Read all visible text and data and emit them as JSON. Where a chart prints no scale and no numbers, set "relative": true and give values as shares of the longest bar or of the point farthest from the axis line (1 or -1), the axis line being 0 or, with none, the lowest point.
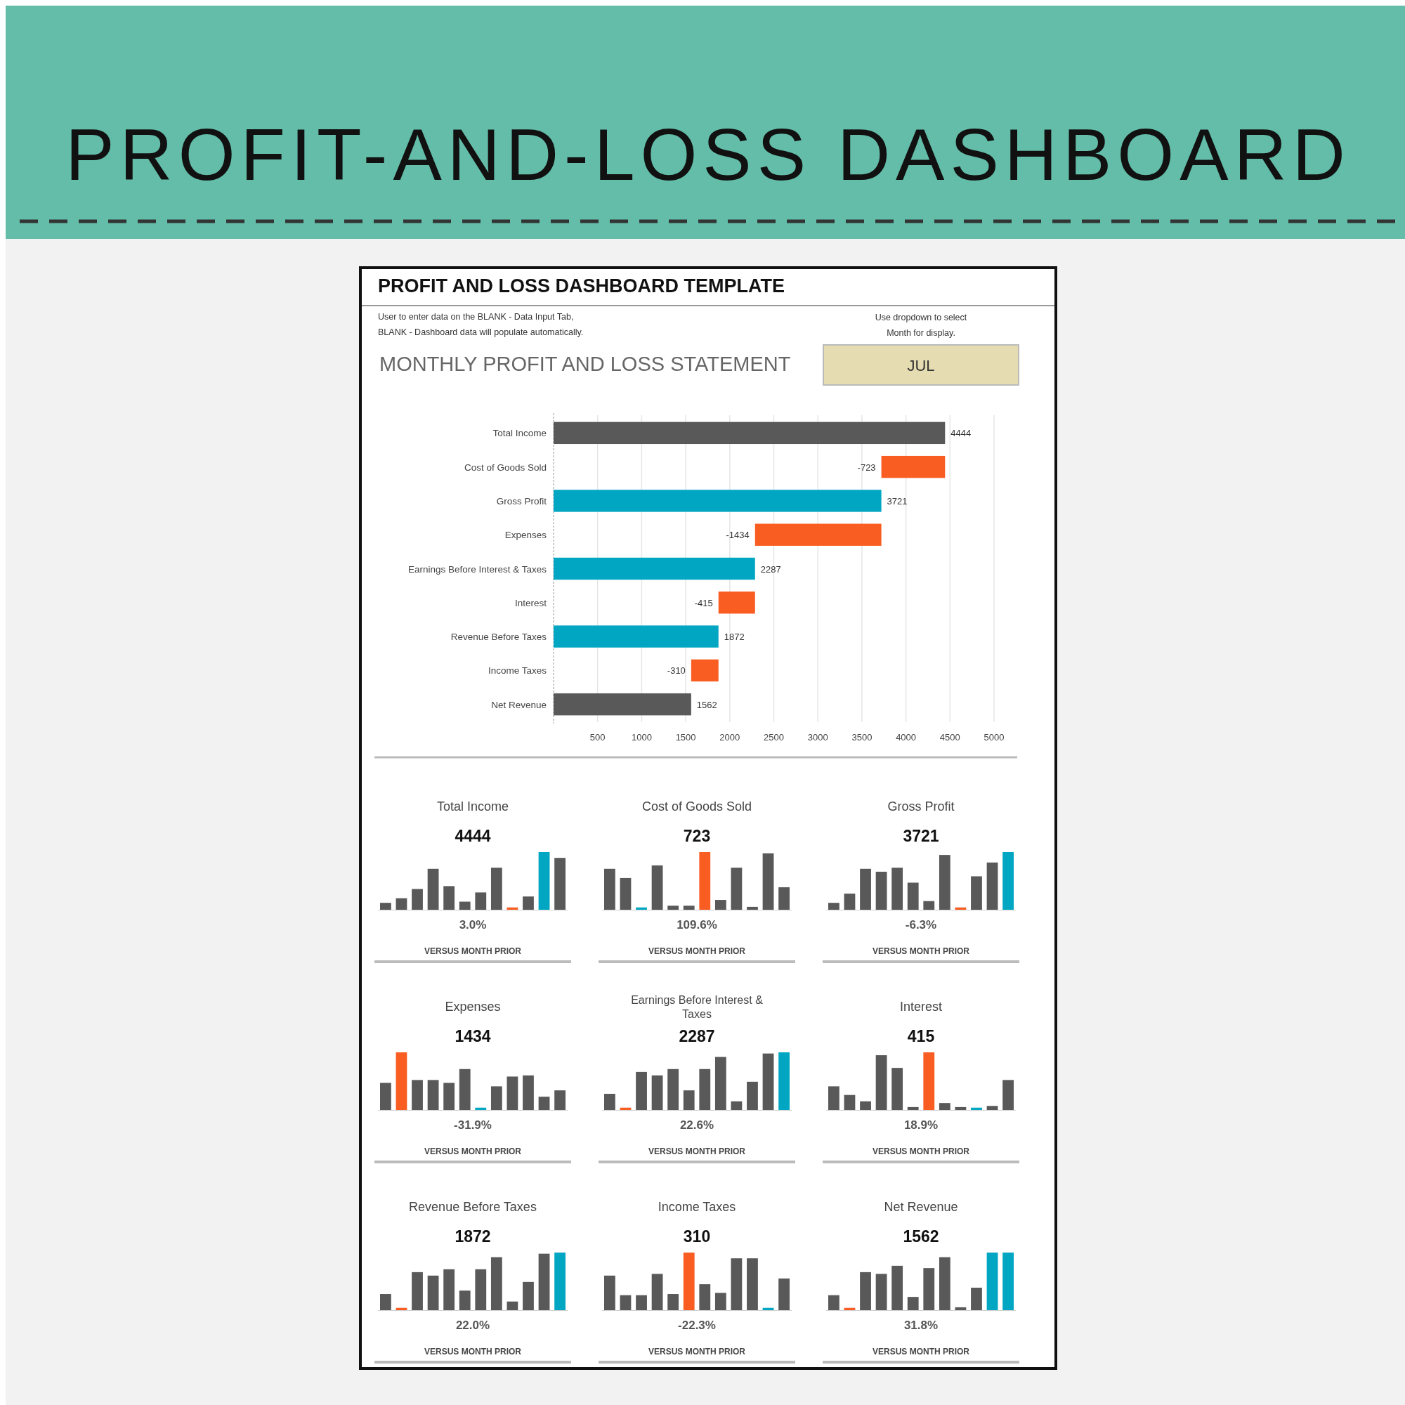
{
  "chart_data": [
    {
      "type": "bar",
      "orientation": "horizontal",
      "title": "PROFIT-AND-LOSS DASHBOARD",
      "subtitle": "PROFIT AND LOSS DASHBOARD TEMPLATE",
      "annotations": [
        "User to enter data on the BLANK - Data Input Tab,",
        "BLANK - Dashboard data will populate automatically.",
        "MONTHLY PROFIT AND LOSS STATEMENT",
        "Use dropdown to select",
        "Month for display.",
        "JUL"
      ],
      "categories": [
        "Total Income",
        "Cost of Goods Sold",
        "Gross Profit",
        "Expenses",
        "Earnings Before Interest & Taxes",
        "Interest",
        "Revenue Before Taxes",
        "Income Taxes",
        "Net Revenue"
      ],
      "values": [
        4444,
        -723,
        3721,
        -1434,
        2287,
        -415,
        1872,
        -310,
        1562
      ],
      "base": [
        0,
        4444,
        0,
        3721,
        0,
        2287,
        0,
        1872,
        0
      ],
      "colors": [
        "#595959",
        "#f95d22",
        "#00a6c2",
        "#f95d22",
        "#00a6c2",
        "#f95d22",
        "#00a6c2",
        "#f95d22",
        "#595959"
      ],
      "xlim": [
        0,
        5000
      ],
      "xticks": [
        500,
        1000,
        1500,
        2000,
        2500,
        3000,
        3500,
        4000,
        4500,
        5000
      ],
      "grid": "x",
      "data_labels": true
    },
    {
      "type": "bar",
      "relative": true,
      "title": "Total Income",
      "annotations": [
        "4444",
        "3.0%",
        "VERSUS MONTH PRIOR"
      ],
      "categories": [
        null,
        null,
        null,
        null,
        null,
        null,
        null,
        null,
        null,
        null,
        null,
        null
      ],
      "values": [
        0.12,
        0.2,
        0.36,
        0.71,
        0.41,
        0.14,
        0.3,
        0.73,
        0.04,
        0.23,
        1,
        0.9
      ],
      "colors": [
        "#595959",
        "#595959",
        "#595959",
        "#595959",
        "#595959",
        "#595959",
        "#595959",
        "#595959",
        "#f95d22",
        "#595959",
        "#00a6c2",
        "#595959"
      ]
    },
    {
      "type": "bar",
      "relative": true,
      "title": "Cost of Goods Sold",
      "annotations": [
        "723",
        "109.6%",
        "VERSUS MONTH PRIOR"
      ],
      "categories": [
        null,
        null,
        null,
        null,
        null,
        null,
        null,
        null,
        null,
        null,
        null,
        null
      ],
      "values": [
        0.71,
        0.55,
        0.04,
        0.77,
        0.07,
        0.07,
        1,
        0.17,
        0.73,
        0.05,
        0.98,
        0.39
      ],
      "colors": [
        "#595959",
        "#595959",
        "#00a6c2",
        "#595959",
        "#595959",
        "#595959",
        "#f95d22",
        "#595959",
        "#595959",
        "#595959",
        "#595959",
        "#595959"
      ]
    },
    {
      "type": "bar",
      "relative": true,
      "title": "Gross Profit",
      "annotations": [
        "3721",
        "-6.3%",
        "VERSUS MONTH PRIOR"
      ],
      "categories": [
        null,
        null,
        null,
        null,
        null,
        null,
        null,
        null,
        null,
        null,
        null,
        null
      ],
      "values": [
        0.12,
        0.28,
        0.71,
        0.66,
        0.73,
        0.47,
        0.15,
        0.95,
        0.04,
        0.58,
        0.82,
        1
      ],
      "colors": [
        "#595959",
        "#595959",
        "#595959",
        "#595959",
        "#595959",
        "#595959",
        "#595959",
        "#595959",
        "#f95d22",
        "#595959",
        "#595959",
        "#00a6c2"
      ]
    },
    {
      "type": "bar",
      "relative": true,
      "title": "Expenses",
      "annotations": [
        "1434",
        "-31.9%",
        "VERSUS MONTH PRIOR"
      ],
      "categories": [
        null,
        null,
        null,
        null,
        null,
        null,
        null,
        null,
        null,
        null,
        null,
        null
      ],
      "values": [
        0.47,
        1,
        0.52,
        0.52,
        0.47,
        0.71,
        0.04,
        0.41,
        0.58,
        0.6,
        0.23,
        0.34
      ],
      "colors": [
        "#595959",
        "#f95d22",
        "#595959",
        "#595959",
        "#595959",
        "#595959",
        "#00a6c2",
        "#595959",
        "#595959",
        "#595959",
        "#595959",
        "#595959"
      ]
    },
    {
      "type": "bar",
      "relative": true,
      "title": "Earnings Before Interest & Taxes",
      "annotations": [
        "2287",
        "22.6%",
        "VERSUS MONTH PRIOR"
      ],
      "categories": [
        null,
        null,
        null,
        null,
        null,
        null,
        null,
        null,
        null,
        null,
        null,
        null
      ],
      "values": [
        0.28,
        0.04,
        0.66,
        0.6,
        0.71,
        0.34,
        0.71,
        0.92,
        0.15,
        0.49,
        0.98,
        1
      ],
      "colors": [
        "#595959",
        "#f95d22",
        "#595959",
        "#595959",
        "#595959",
        "#595959",
        "#595959",
        "#595959",
        "#595959",
        "#595959",
        "#595959",
        "#00a6c2"
      ]
    },
    {
      "type": "bar",
      "relative": true,
      "title": "Interest",
      "annotations": [
        "415",
        "18.9%",
        "VERSUS MONTH PRIOR"
      ],
      "categories": [
        null,
        null,
        null,
        null,
        null,
        null,
        null,
        null,
        null,
        null,
        null,
        null
      ],
      "values": [
        0.41,
        0.26,
        0.15,
        0.95,
        0.73,
        0.05,
        1,
        0.12,
        0.05,
        0.04,
        0.07,
        0.52
      ],
      "colors": [
        "#595959",
        "#595959",
        "#595959",
        "#595959",
        "#595959",
        "#595959",
        "#f95d22",
        "#595959",
        "#595959",
        "#00a6c2",
        "#595959",
        "#595959"
      ]
    },
    {
      "type": "bar",
      "relative": true,
      "title": "Revenue Before Taxes",
      "annotations": [
        "1872",
        "22.0%",
        "VERSUS MONTH PRIOR"
      ],
      "categories": [
        null,
        null,
        null,
        null,
        null,
        null,
        null,
        null,
        null,
        null,
        null,
        null
      ],
      "values": [
        0.28,
        0.04,
        0.66,
        0.6,
        0.71,
        0.34,
        0.71,
        0.92,
        0.15,
        0.49,
        0.98,
        1
      ],
      "colors": [
        "#595959",
        "#f95d22",
        "#595959",
        "#595959",
        "#595959",
        "#595959",
        "#595959",
        "#595959",
        "#595959",
        "#595959",
        "#595959",
        "#00a6c2"
      ]
    },
    {
      "type": "bar",
      "relative": true,
      "title": "Income Taxes",
      "annotations": [
        "310",
        "-22.3%",
        "VERSUS MONTH PRIOR"
      ],
      "categories": [
        null,
        null,
        null,
        null,
        null,
        null,
        null,
        null,
        null,
        null,
        null,
        null
      ],
      "values": [
        0.6,
        0.26,
        0.26,
        0.63,
        0.28,
        1,
        0.45,
        0.3,
        0.9,
        0.9,
        0.04,
        0.55
      ],
      "colors": [
        "#595959",
        "#595959",
        "#595959",
        "#595959",
        "#595959",
        "#f95d22",
        "#595959",
        "#595959",
        "#595959",
        "#595959",
        "#00a6c2",
        "#595959"
      ]
    },
    {
      "type": "bar",
      "relative": true,
      "title": "Net Revenue",
      "annotations": [
        "1562",
        "31.8%",
        "VERSUS MONTH PRIOR"
      ],
      "categories": [
        null,
        null,
        null,
        null,
        null,
        null,
        null,
        null,
        null,
        null,
        null,
        null
      ],
      "values": [
        0.26,
        0.04,
        0.66,
        0.63,
        0.77,
        0.23,
        0.73,
        0.92,
        0.05,
        0.39,
        1,
        1
      ],
      "colors": [
        "#595959",
        "#f95d22",
        "#595959",
        "#595959",
        "#595959",
        "#595959",
        "#595959",
        "#595959",
        "#595959",
        "#595959",
        "#00a6c2",
        "#00a6c2"
      ]
    }
  ]
}
